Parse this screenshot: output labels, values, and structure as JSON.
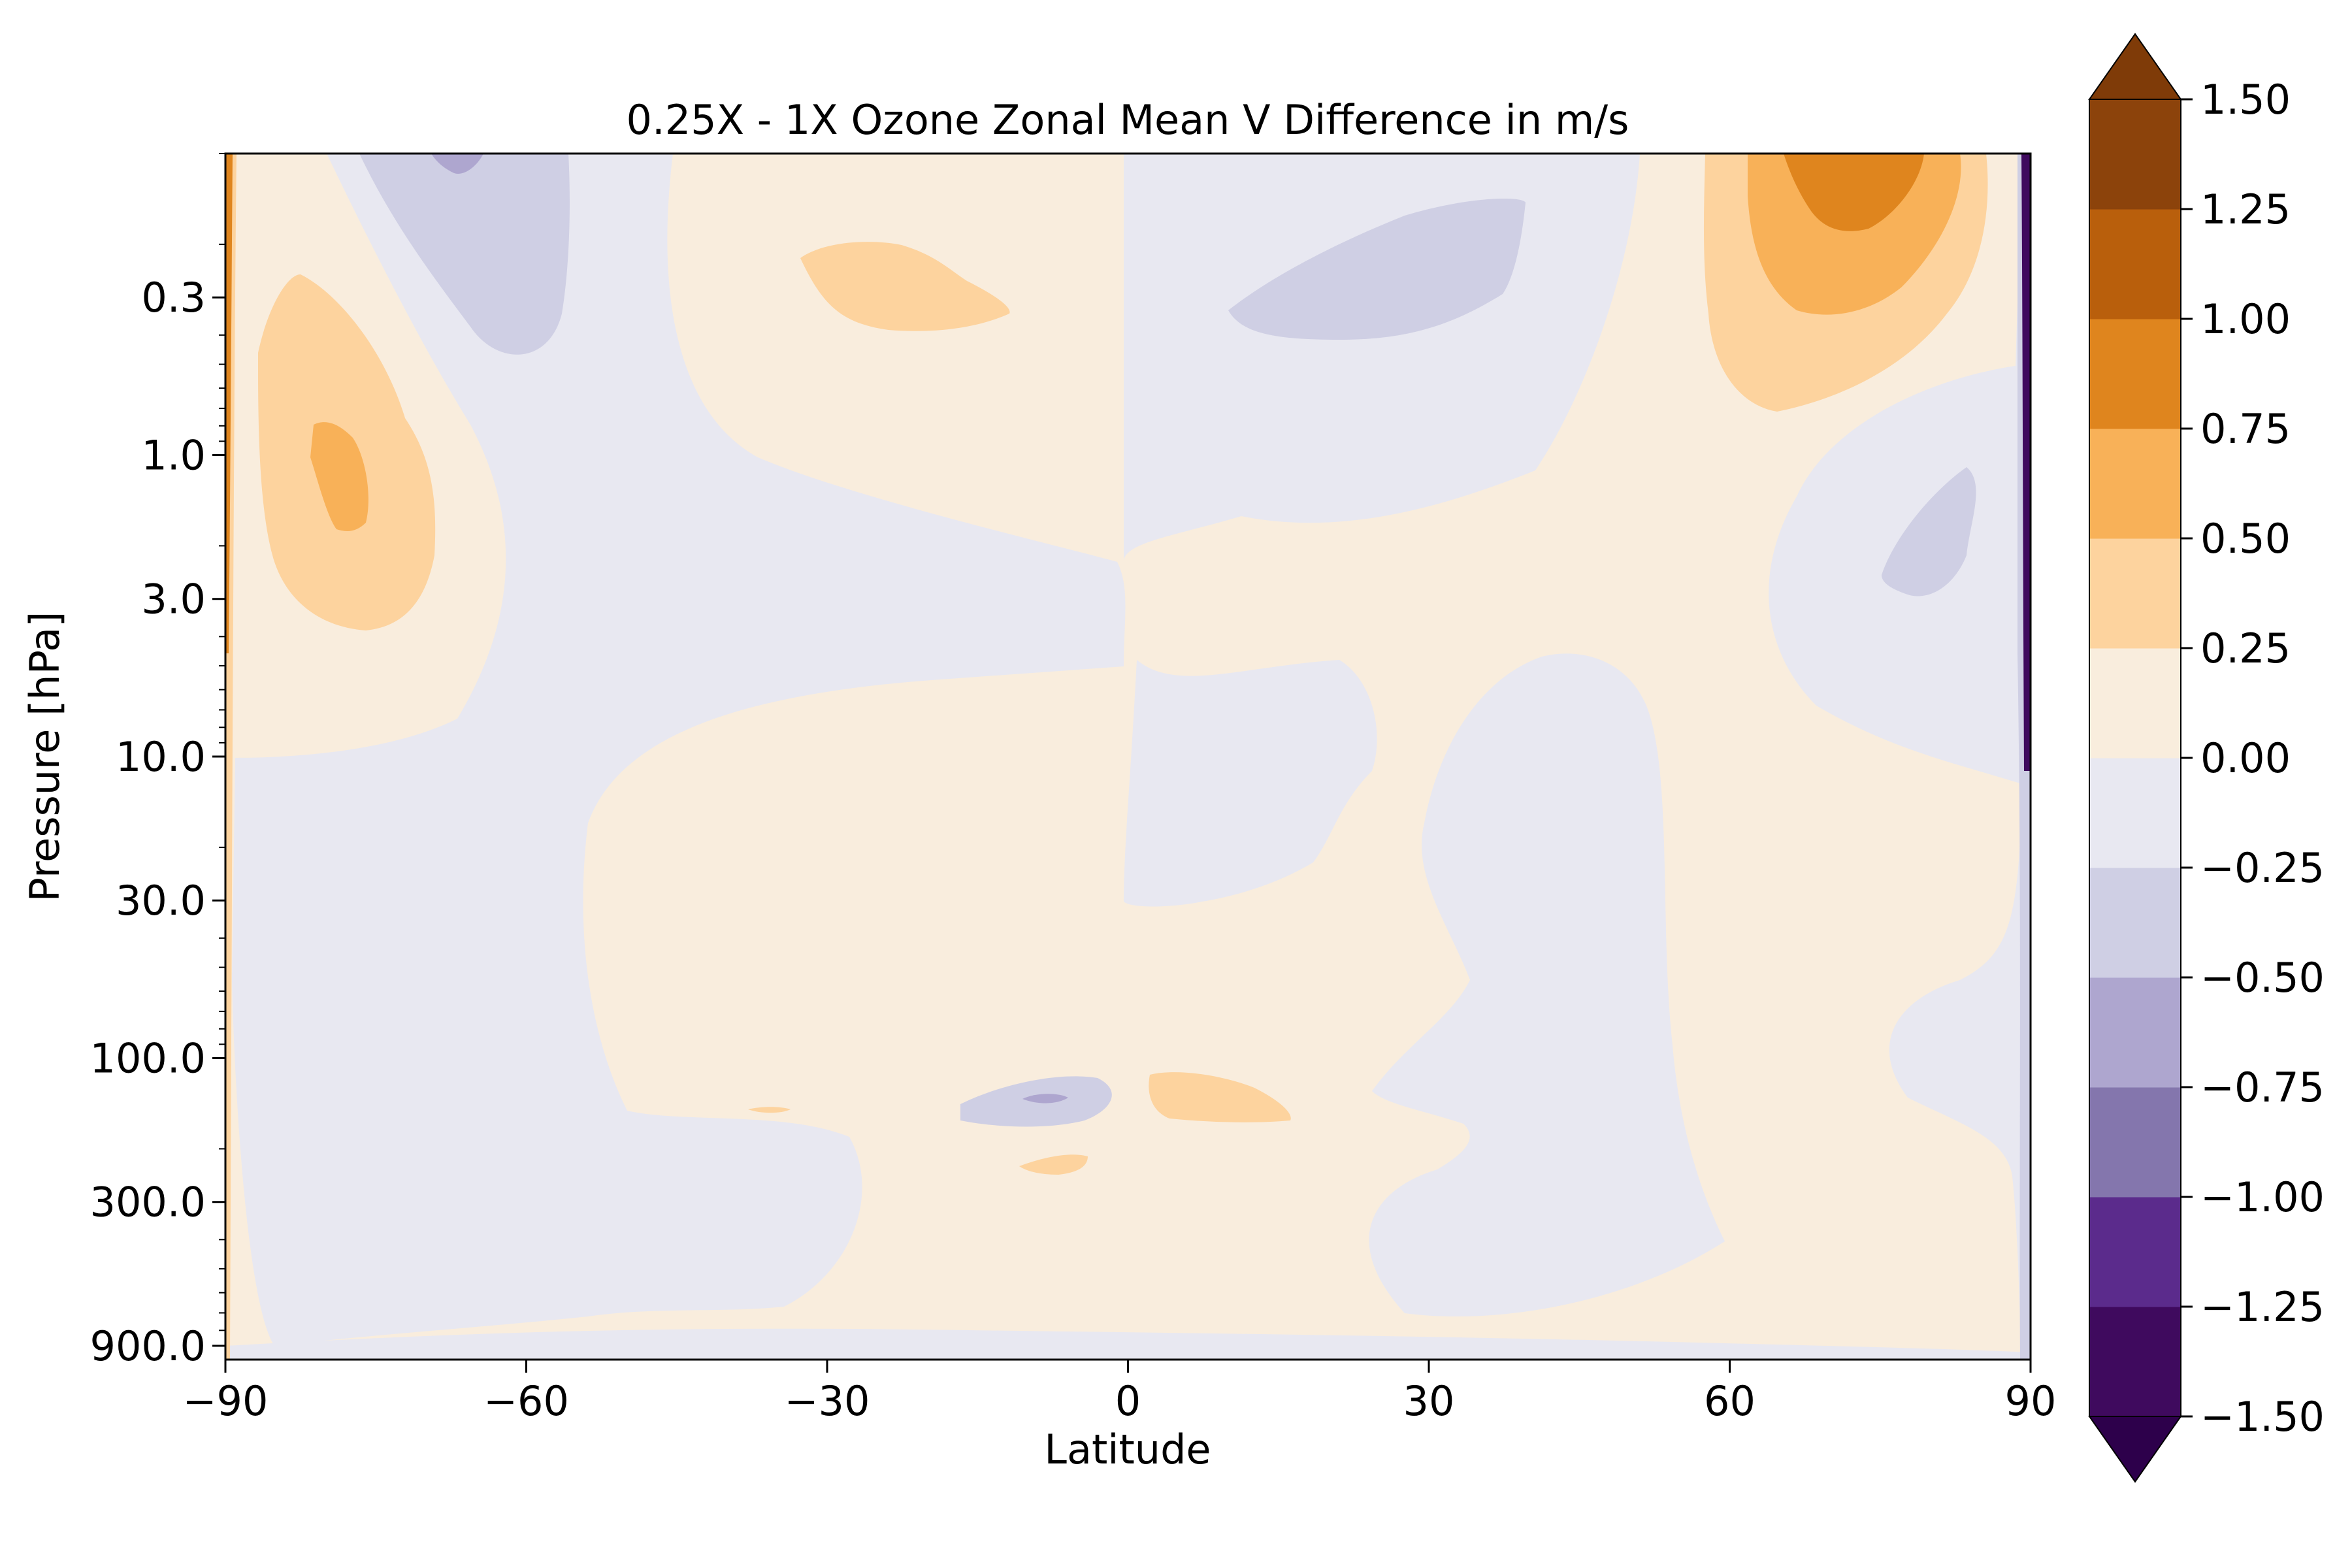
{
  "chart_data": {
    "type": "heatmap",
    "subtype": "filled-contour",
    "title": "0.25X - 1X Ozone Zonal Mean V Difference in m/s",
    "xlabel": "Latitude",
    "ylabel": "Pressure [hPa]",
    "xlim": [
      -90,
      90
    ],
    "ylim": [
      1000,
      0.1
    ],
    "yscale": "log",
    "xticks": [
      -90,
      -60,
      -30,
      0,
      30,
      60,
      90
    ],
    "xtick_labels": [
      "−90",
      "−60",
      "−30",
      "0",
      "30",
      "60",
      "90"
    ],
    "yticks": [
      0.3,
      1.0,
      3.0,
      10.0,
      30.0,
      100.0,
      300.0,
      900.0
    ],
    "ytick_labels": [
      "0.3",
      "1.0",
      "3.0",
      "10.0",
      "30.0",
      "100.0",
      "300.0",
      "900.0"
    ],
    "colorbar": {
      "levels": [
        -1.5,
        -1.25,
        -1.0,
        -0.75,
        -0.5,
        -0.25,
        0.0,
        0.25,
        0.5,
        0.75,
        1.0,
        1.25,
        1.5
      ],
      "tick_labels": [
        "−1.50",
        "−1.25",
        "−1.00",
        "−0.75",
        "−0.50",
        "−0.25",
        "0.00",
        "0.25",
        "0.50",
        "0.75",
        "1.00",
        "1.25",
        "1.50"
      ],
      "colors": [
        "#3f0a5e",
        "#5b2b8c",
        "#8476ad",
        "#aea6cf",
        "#cfcfe4",
        "#e8e8f1",
        "#f9eddd",
        "#fdd39e",
        "#f8b158",
        "#df851e",
        "#b95f0c",
        "#8c430b"
      ],
      "under_color": "#2d004b",
      "over_color": "#7f3b08",
      "extend": "both"
    },
    "features": [
      {
        "kind": "positive",
        "label": "south-pole near-surface-wall",
        "lat": [
          -90,
          -89
        ],
        "p": [
          900,
          0.1
        ],
        "level_max": 0.75
      },
      {
        "kind": "positive",
        "label": "southern upper-stratosphere cell",
        "lat": [
          -86,
          -66
        ],
        "p": [
          4,
          0.3
        ],
        "level_max": 0.75,
        "peak": {
          "lat": -77,
          "p": 1.4
        }
      },
      {
        "kind": "negative",
        "label": "southern mesosphere lobe",
        "lat": [
          -68,
          -48
        ],
        "p": [
          0.5,
          0.1
        ],
        "level_min": -0.75
      },
      {
        "kind": "positive",
        "label": "tropical upper cell",
        "lat": [
          -36,
          -12
        ],
        "p": [
          0.45,
          0.25
        ],
        "level_max": 0.5
      },
      {
        "kind": "negative",
        "label": "northern mesosphere lobe",
        "lat": [
          10,
          40
        ],
        "p": [
          0.45,
          0.2
        ],
        "level_min": -0.5
      },
      {
        "kind": "positive",
        "label": "northern mesosphere jet",
        "lat": [
          58,
          83
        ],
        "p": [
          0.75,
          0.1
        ],
        "level_max": 1.0,
        "peak": {
          "lat": 73,
          "p": 0.12
        }
      },
      {
        "kind": "negative",
        "label": "northern upper-stratosphere lobe",
        "lat": [
          75,
          84
        ],
        "p": [
          3.5,
          1.5
        ],
        "level_min": -0.5
      },
      {
        "kind": "negative",
        "label": "tropopause pocket",
        "lat": [
          -16,
          0
        ],
        "p": [
          190,
          140
        ],
        "level_min": -0.75
      },
      {
        "kind": "positive",
        "label": "tropopause pocket",
        "lat": [
          2,
          17
        ],
        "p": [
          190,
          140
        ],
        "level_max": 0.5
      },
      {
        "kind": "positive",
        "label": "small pocket",
        "lat": [
          -37,
          -34
        ],
        "p": [
          165,
          155
        ],
        "level_max": 0.5
      },
      {
        "kind": "positive",
        "label": "small pocket",
        "lat": [
          -11,
          -4
        ],
        "p": [
          280,
          240
        ],
        "level_max": 0.5
      },
      {
        "kind": "negative",
        "label": "north-pole near-surface-wall",
        "lat": [
          89,
          90
        ],
        "p": [
          900,
          0.1
        ],
        "level_min": -1.5
      }
    ]
  }
}
